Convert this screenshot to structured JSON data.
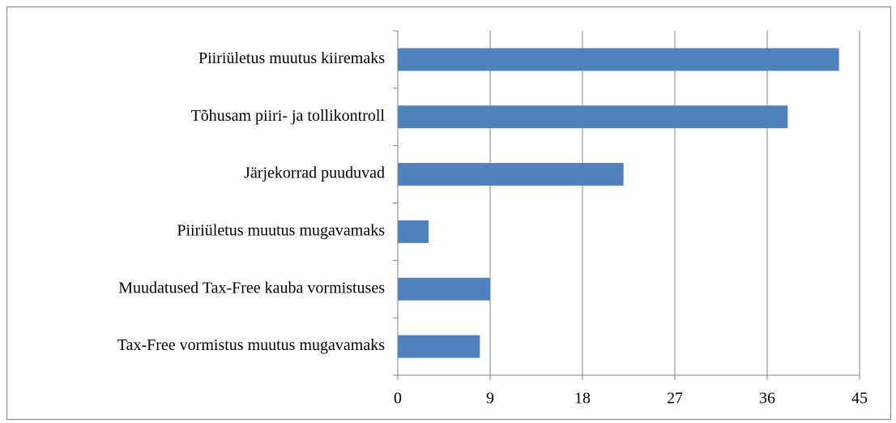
{
  "chart_data": {
    "type": "bar",
    "orientation": "horizontal",
    "categories": [
      "Piiriületus muutus kiiremaks",
      "Tõhusam piiri- ja tollikontroll",
      "Järjekorrad puuduvad",
      "Piiriületus muutus mugavamaks",
      "Muudatused Tax-Free kauba vormistuses",
      "Tax-Free vormistus muutus mugavamaks"
    ],
    "values": [
      43,
      38,
      22,
      3,
      9,
      8
    ],
    "color": "#4f81bd",
    "xlim": [
      0,
      45
    ],
    "xticks": [
      0,
      9,
      18,
      27,
      36,
      45
    ],
    "grid": true
  }
}
